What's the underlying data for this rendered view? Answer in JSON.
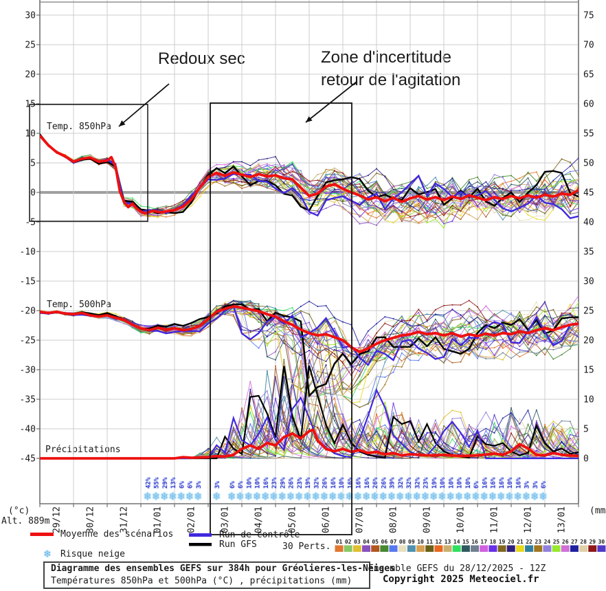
{
  "annotations": {
    "redoux": "Redoux sec",
    "zone_line1": "Zone d'incertitude",
    "zone_line2": "retour de l'agitation"
  },
  "panel_labels": {
    "t850": "Temp. 850hPa",
    "t500": "Temp. 500hPa",
    "precip": "Précipitations"
  },
  "axis": {
    "left_unit": "(°c)",
    "alt": "Alt. 889m",
    "right_unit": "(mm)",
    "left_ticks": [
      30,
      25,
      20,
      15,
      10,
      5,
      0,
      -5,
      -10,
      -15,
      -20,
      -25,
      -30,
      -35,
      -40,
      -45
    ],
    "right_ticks": [
      75,
      70,
      65,
      60,
      55,
      50,
      45,
      40,
      35,
      30,
      25,
      20,
      15,
      10,
      5,
      0
    ],
    "x_labels": [
      "29/12",
      "30/12",
      "31/12",
      "01/01",
      "02/01",
      "03/01",
      "04/01",
      "05/01",
      "06/01",
      "07/01",
      "08/01",
      "09/01",
      "10/01",
      "11/01",
      "12/01",
      "13/01"
    ]
  },
  "legend": {
    "mean": "Moyenne des scénarios",
    "control": "Run de contrôle",
    "gfs": "Run GFS",
    "perts": "30 Perts.",
    "snow": "Risque neige",
    "snow_icon": "❄",
    "mean_color": "#ee1010",
    "control_color": "#4028e0",
    "gfs_color": "#000000",
    "pert_numbers": [
      "01",
      "02",
      "03",
      "04",
      "05",
      "06",
      "07",
      "08",
      "09",
      "10",
      "11",
      "12",
      "13",
      "14",
      "15",
      "16",
      "17",
      "18",
      "19",
      "20",
      "21",
      "22",
      "23",
      "24",
      "25",
      "26",
      "27",
      "28",
      "29",
      "30"
    ],
    "pert_colors": [
      "#e07830",
      "#88c868",
      "#e0c030",
      "#8850c0",
      "#b05820",
      "#488830",
      "#5878f0",
      "#e8e0c0",
      "#5090b0",
      "#d8a050",
      "#686018",
      "#e86820",
      "#c8b070",
      "#30e060",
      "#305860",
      "#708090",
      "#d060e0",
      "#6830e8",
      "#806820",
      "#302080",
      "#e8d820",
      "#3080a0",
      "#a07820",
      "#9080e0",
      "#98e830",
      "#d070d8",
      "#2020a0",
      "#e0d0a8",
      "#901818",
      "#5038c8"
    ]
  },
  "footer": {
    "title": "Diagramme des ensembles GEFS sur 384h pour Gréolieres-les-Neiges",
    "subtitle": "Températures 850hPa et 500hPa (°C) , précipitations (mm)",
    "run": "Ensemble GEFS du 28/12/2025 - 12Z",
    "copyright": "Copyright 2025 Meteociel.fr"
  },
  "snow_risk": {
    "step_days": 0.25,
    "groups": [
      {
        "start_day": 3.2,
        "pcts": [
          42,
          55,
          29,
          13,
          6,
          6
        ]
      },
      {
        "start_day": 4.7,
        "pcts": [
          3
        ]
      },
      {
        "start_day": 5.25,
        "pcts": [
          3
        ]
      },
      {
        "start_day": 5.7,
        "pcts": [
          6,
          6,
          10,
          10,
          16,
          23,
          29,
          26,
          23,
          19,
          32,
          26,
          16,
          10,
          16,
          16,
          16,
          26,
          26,
          39,
          32,
          32,
          32,
          23,
          19,
          10,
          10,
          10,
          10,
          6,
          16,
          16,
          16,
          10,
          16,
          3,
          3,
          6
        ]
      }
    ]
  },
  "chart_data": {
    "type": "line",
    "title": "Diagramme des ensembles GEFS sur 384h pour Gréolieres-les-Neiges",
    "x_start": "29/12 00Z",
    "x_range_days": [
      0,
      16
    ],
    "step_days": 0.25,
    "ylabel_left": "(°c)",
    "ylabel_right": "(mm)",
    "ylim_left": [
      -45,
      30
    ],
    "ylim_right": [
      0,
      75
    ],
    "grid": true,
    "members_count": 30,
    "extra_runs": [
      "Run de contrôle",
      "Run GFS"
    ],
    "series": [
      {
        "name": "mean_t850_c",
        "keypoints": [
          [
            0,
            9.6
          ],
          [
            0.25,
            8.0
          ],
          [
            0.5,
            6.8
          ],
          [
            0.75,
            6.1
          ],
          [
            1,
            5.2
          ],
          [
            1.25,
            5.7
          ],
          [
            1.5,
            5.9
          ],
          [
            1.75,
            5.2
          ],
          [
            2,
            5.4
          ],
          [
            2.1,
            6.3
          ],
          [
            2.25,
            4.3
          ],
          [
            2.4,
            -0.6
          ],
          [
            2.6,
            -2.6
          ],
          [
            2.75,
            -1.9
          ],
          [
            2.9,
            -2.9
          ],
          [
            3.1,
            -3.6
          ],
          [
            3.35,
            -3.1
          ],
          [
            3.6,
            -3.4
          ],
          [
            3.85,
            -3.1
          ],
          [
            4,
            -3.0
          ],
          [
            4.25,
            -2.4
          ],
          [
            4.5,
            -1.2
          ],
          [
            4.75,
            0.8
          ],
          [
            5,
            2.6
          ],
          [
            5.25,
            3.3
          ],
          [
            5.5,
            2.8
          ],
          [
            5.75,
            3.4
          ],
          [
            6,
            3.0
          ],
          [
            6.25,
            2.6
          ],
          [
            6.5,
            3.1
          ],
          [
            6.75,
            2.7
          ],
          [
            7,
            2.9
          ],
          [
            7.25,
            2.4
          ],
          [
            7.5,
            2.2
          ],
          [
            7.75,
            0.8
          ],
          [
            8,
            -0.6
          ],
          [
            8.25,
            -0.2
          ],
          [
            8.5,
            1.0
          ],
          [
            8.75,
            1.4
          ],
          [
            9,
            0.6
          ],
          [
            9.25,
            0.0
          ],
          [
            9.5,
            -0.5
          ],
          [
            9.75,
            -1.2
          ],
          [
            10,
            -0.8
          ],
          [
            10.25,
            -1.5
          ],
          [
            10.5,
            -0.9
          ],
          [
            10.75,
            -1.6
          ],
          [
            11,
            -1.0
          ],
          [
            11.25,
            -0.6
          ],
          [
            11.5,
            -1.2
          ],
          [
            11.75,
            -0.8
          ],
          [
            12,
            -1.3
          ],
          [
            12.25,
            -0.7
          ],
          [
            12.5,
            -1.1
          ],
          [
            12.75,
            -0.5
          ],
          [
            13,
            -0.9
          ],
          [
            13.25,
            -1.3
          ],
          [
            13.5,
            -0.8
          ],
          [
            13.75,
            -1.1
          ],
          [
            14,
            -0.6
          ],
          [
            14.25,
            -1.0
          ],
          [
            14.5,
            -0.5
          ],
          [
            14.75,
            -0.9
          ],
          [
            15,
            -0.4
          ],
          [
            15.25,
            -0.7
          ],
          [
            15.5,
            -0.2
          ],
          [
            15.75,
            -0.4
          ],
          [
            16,
            0.4
          ]
        ]
      },
      {
        "name": "mean_t500_c",
        "keypoints": [
          [
            0,
            -20.2
          ],
          [
            0.25,
            -20.4
          ],
          [
            0.5,
            -20.2
          ],
          [
            0.75,
            -20.5
          ],
          [
            1,
            -20.6
          ],
          [
            1.25,
            -20.4
          ],
          [
            1.5,
            -20.8
          ],
          [
            1.75,
            -21.0
          ],
          [
            2,
            -20.8
          ],
          [
            2.25,
            -21.2
          ],
          [
            2.5,
            -21.6
          ],
          [
            2.75,
            -22.4
          ],
          [
            3,
            -23.0
          ],
          [
            3.25,
            -23.3
          ],
          [
            3.5,
            -22.9
          ],
          [
            3.75,
            -23.2
          ],
          [
            4,
            -23.0
          ],
          [
            4.25,
            -23.3
          ],
          [
            4.5,
            -23.1
          ],
          [
            4.75,
            -22.6
          ],
          [
            5,
            -21.4
          ],
          [
            5.25,
            -20.2
          ],
          [
            5.5,
            -19.7
          ],
          [
            5.75,
            -19.3
          ],
          [
            6,
            -19.5
          ],
          [
            6.25,
            -19.8
          ],
          [
            6.5,
            -20.1
          ],
          [
            6.75,
            -20.6
          ],
          [
            7,
            -21.0
          ],
          [
            7.25,
            -21.8
          ],
          [
            7.5,
            -22.4
          ],
          [
            7.75,
            -23.2
          ],
          [
            8,
            -23.8
          ],
          [
            8.25,
            -24.2
          ],
          [
            8.5,
            -24.0
          ],
          [
            8.75,
            -24.5
          ],
          [
            9,
            -25.0
          ],
          [
            9.25,
            -26.2
          ],
          [
            9.5,
            -27.0
          ],
          [
            9.75,
            -26.4
          ],
          [
            10,
            -25.6
          ],
          [
            10.25,
            -25.0
          ],
          [
            10.5,
            -24.6
          ],
          [
            10.75,
            -24.2
          ],
          [
            11,
            -24.0
          ],
          [
            11.25,
            -23.6
          ],
          [
            11.5,
            -24.0
          ],
          [
            11.75,
            -23.8
          ],
          [
            12,
            -24.2
          ],
          [
            12.25,
            -23.8
          ],
          [
            12.5,
            -24.4
          ],
          [
            12.75,
            -24.0
          ],
          [
            13,
            -24.3
          ],
          [
            13.25,
            -23.9
          ],
          [
            13.5,
            -24.2
          ],
          [
            13.75,
            -23.8
          ],
          [
            14,
            -24.0
          ],
          [
            14.25,
            -23.5
          ],
          [
            14.5,
            -23.8
          ],
          [
            14.75,
            -23.3
          ],
          [
            15,
            -23.0
          ],
          [
            15.25,
            -23.3
          ],
          [
            15.5,
            -22.8
          ],
          [
            15.75,
            -22.4
          ],
          [
            16,
            -22.2
          ]
        ]
      },
      {
        "name": "mean_precip_mm",
        "keypoints": [
          [
            0,
            0
          ],
          [
            4,
            0
          ],
          [
            4.25,
            0.2
          ],
          [
            4.5,
            0.1
          ],
          [
            5,
            0.2
          ],
          [
            5.25,
            0.4
          ],
          [
            5.5,
            0.3
          ],
          [
            5.75,
            0.6
          ],
          [
            6,
            1.6
          ],
          [
            6.25,
            2.2
          ],
          [
            6.5,
            1.6
          ],
          [
            6.75,
            2.6
          ],
          [
            7,
            2.2
          ],
          [
            7.25,
            3.6
          ],
          [
            7.5,
            4.2
          ],
          [
            7.75,
            3.4
          ],
          [
            8,
            4.6
          ],
          [
            8.1,
            5.2
          ],
          [
            8.25,
            3.0
          ],
          [
            8.5,
            1.6
          ],
          [
            8.75,
            1.2
          ],
          [
            9,
            1.6
          ],
          [
            9.25,
            1.1
          ],
          [
            9.5,
            1.4
          ],
          [
            9.75,
            0.9
          ],
          [
            10,
            1.1
          ],
          [
            10.25,
            0.7
          ],
          [
            10.5,
            0.9
          ],
          [
            10.75,
            0.5
          ],
          [
            11,
            0.7
          ],
          [
            11.5,
            0.5
          ],
          [
            12,
            0.6
          ],
          [
            12.5,
            0.4
          ],
          [
            13,
            0.5
          ],
          [
            13.5,
            0.8
          ],
          [
            13.75,
            0.6
          ],
          [
            14,
            1.2
          ],
          [
            14.25,
            2.4
          ],
          [
            14.5,
            1.7
          ],
          [
            14.75,
            0.6
          ],
          [
            15,
            0.5
          ],
          [
            15.25,
            0.9
          ],
          [
            15.5,
            0.6
          ],
          [
            16,
            0.4
          ]
        ]
      }
    ],
    "envelopes": {
      "t850_halfwidth": [
        [
          0,
          0.25
        ],
        [
          1,
          0.7
        ],
        [
          2,
          1.0
        ],
        [
          2.5,
          1.6
        ],
        [
          3,
          1.5
        ],
        [
          4,
          1.7
        ],
        [
          4.5,
          2.2
        ],
        [
          5,
          2.8
        ],
        [
          5.5,
          3.2
        ],
        [
          6,
          4.0
        ],
        [
          6.5,
          4.6
        ],
        [
          7,
          5.2
        ],
        [
          7.5,
          5.6
        ],
        [
          8,
          6.0
        ],
        [
          9,
          6.5
        ],
        [
          10,
          7.0
        ],
        [
          11,
          7.2
        ],
        [
          12,
          7.4
        ],
        [
          13,
          7.6
        ],
        [
          14,
          7.8
        ],
        [
          15,
          8.0
        ],
        [
          16,
          8.2
        ]
      ],
      "t500_halfwidth": [
        [
          0,
          0.3
        ],
        [
          1,
          0.6
        ],
        [
          2,
          0.9
        ],
        [
          3,
          1.3
        ],
        [
          4,
          1.7
        ],
        [
          5,
          2.2
        ],
        [
          5.5,
          2.6
        ],
        [
          6,
          3.5
        ],
        [
          6.5,
          5.0
        ],
        [
          7,
          6.5
        ],
        [
          7.5,
          8.0
        ],
        [
          8,
          8.5
        ],
        [
          8.5,
          8.0
        ],
        [
          9,
          7.5
        ],
        [
          10,
          7.5
        ],
        [
          11,
          7.8
        ],
        [
          12,
          8.0
        ],
        [
          13,
          8.0
        ],
        [
          14,
          8.2
        ],
        [
          15,
          8.5
        ],
        [
          16,
          8.5
        ]
      ],
      "precip_max_mm": [
        [
          0,
          0
        ],
        [
          4.5,
          0
        ],
        [
          5,
          3
        ],
        [
          5.5,
          6
        ],
        [
          6,
          14
        ],
        [
          6.5,
          22
        ],
        [
          7,
          26
        ],
        [
          7.5,
          29
        ],
        [
          8,
          26
        ],
        [
          8.5,
          18
        ],
        [
          9,
          11
        ],
        [
          9.5,
          9
        ],
        [
          10,
          13
        ],
        [
          10.5,
          14
        ],
        [
          11,
          10
        ],
        [
          11.5,
          8
        ],
        [
          12,
          10
        ],
        [
          12.5,
          8
        ],
        [
          13,
          9
        ],
        [
          13.5,
          11
        ],
        [
          14,
          14
        ],
        [
          14.5,
          12
        ],
        [
          15,
          9
        ],
        [
          15.5,
          7
        ],
        [
          16,
          6
        ]
      ]
    }
  }
}
